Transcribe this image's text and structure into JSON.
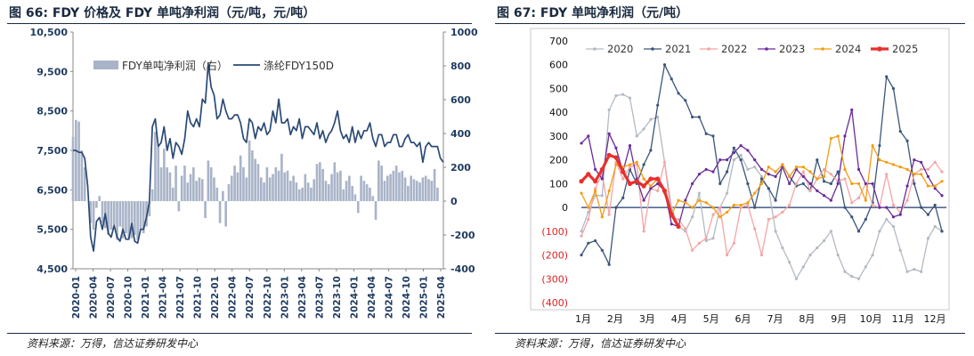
{
  "left": {
    "title": "图 66:  FDY 价格及 FDY 单吨净利润（元/吨，元/吨）",
    "source": "资料来源：万得，信达证券研发中心",
    "chart_data": {
      "type": "bar+line",
      "left_axis": {
        "min": 4500,
        "max": 10500,
        "ticks": [
          4500,
          5500,
          6500,
          7500,
          8500,
          9500,
          10500
        ],
        "tick_labels": [
          "4,500",
          "5,500",
          "6,500",
          "7,500",
          "8,500",
          "9,500",
          "10,500"
        ]
      },
      "right_axis": {
        "min": -400,
        "max": 1000,
        "ticks": [
          -400,
          -200,
          0,
          200,
          400,
          600,
          800,
          1000
        ],
        "tick_labels": [
          "-400",
          "-200",
          "0",
          "200",
          "400",
          "600",
          "800",
          "1000"
        ]
      },
      "x_labels": [
        "2020-01",
        "2020-04",
        "2020-07",
        "2020-10",
        "2021-01",
        "2021-04",
        "2021-07",
        "2021-10",
        "2022-01",
        "2022-04",
        "2022-07",
        "2022-10",
        "2023-01",
        "2023-04",
        "2023-07",
        "2023-10",
        "2024-01",
        "2024-04",
        "2024-07",
        "2024-10",
        "2025-01",
        "2025-04"
      ],
      "x_range_months": [
        0,
        63
      ],
      "legend": [
        {
          "name": "FDY单吨净利润（右）",
          "type": "bar",
          "color": "#a9b4c8"
        },
        {
          "name": "涤纶FDY150D",
          "type": "line",
          "color": "#2b4a75"
        }
      ],
      "profit_series": {
        "name": "FDY单吨净利润（右）",
        "month": [
          0,
          0.5,
          1,
          1.5,
          2,
          2.5,
          3,
          3.5,
          4,
          4.5,
          5,
          5.5,
          6,
          6.5,
          7,
          7.5,
          8,
          8.5,
          9,
          9.5,
          10,
          10.5,
          11,
          11.5,
          12,
          12.5,
          13,
          13.5,
          14,
          14.5,
          15,
          15.5,
          16,
          16.5,
          17,
          17.5,
          18,
          18.5,
          19,
          19.5,
          20,
          20.5,
          21,
          21.5,
          22,
          22.5,
          23,
          23.5,
          24,
          24.5,
          25,
          25.5,
          26,
          26.5,
          27,
          27.5,
          28,
          28.5,
          29,
          29.5,
          30,
          30.5,
          31,
          31.5,
          32,
          32.5,
          33,
          33.5,
          34,
          34.5,
          35,
          35.5,
          36,
          36.5,
          37,
          37.5,
          38,
          38.5,
          39,
          39.5,
          40,
          40.5,
          41,
          41.5,
          42,
          42.5,
          43,
          43.5,
          44,
          44.5,
          45,
          45.5,
          46,
          46.5,
          47,
          47.5,
          48,
          48.5,
          49,
          49.5,
          50,
          50.5,
          51,
          51.5,
          52,
          52.5,
          53,
          53.5,
          54,
          54.5,
          55,
          55.5,
          56,
          56.5,
          57,
          57.5,
          58,
          58.5,
          59,
          59.5,
          60,
          60.5,
          61,
          61.5,
          62
        ],
        "values": [
          380,
          480,
          470,
          300,
          200,
          0,
          -130,
          -170,
          -40,
          30,
          -130,
          -160,
          -200,
          -170,
          -140,
          -230,
          -150,
          -220,
          -190,
          -220,
          -220,
          -200,
          -230,
          -170,
          -190,
          -150,
          -90,
          70,
          410,
          320,
          200,
          310,
          200,
          170,
          80,
          210,
          -60,
          150,
          210,
          110,
          160,
          200,
          120,
          140,
          130,
          -100,
          240,
          200,
          140,
          80,
          -130,
          60,
          -150,
          100,
          150,
          210,
          170,
          270,
          200,
          140,
          360,
          300,
          250,
          220,
          140,
          110,
          200,
          140,
          160,
          200,
          180,
          280,
          170,
          180,
          120,
          150,
          110,
          70,
          80,
          160,
          110,
          80,
          130,
          220,
          230,
          190,
          120,
          100,
          160,
          230,
          170,
          180,
          70,
          120,
          150,
          90,
          40,
          -70,
          150,
          120,
          100,
          80,
          30,
          -110,
          240,
          210,
          120,
          150,
          160,
          180,
          210,
          170,
          180,
          140,
          90,
          150,
          130,
          120,
          110,
          140,
          150,
          130,
          120,
          190,
          80
        ]
      },
      "price_series": {
        "name": "涤纶FDY150D",
        "month": [
          0,
          0.5,
          1,
          1.5,
          2,
          2.5,
          3,
          3.5,
          4,
          4.5,
          5,
          5.5,
          6,
          6.5,
          7,
          7.5,
          8,
          8.5,
          9,
          9.5,
          10,
          10.5,
          11,
          11.5,
          12,
          12.5,
          13,
          13.5,
          14,
          14.5,
          15,
          15.5,
          16,
          16.5,
          17,
          17.5,
          18,
          18.5,
          19,
          19.5,
          20,
          20.5,
          21,
          21.5,
          22,
          22.5,
          23,
          23.5,
          24,
          24.5,
          25,
          25.5,
          26,
          26.5,
          27,
          27.5,
          28,
          28.5,
          29,
          29.5,
          30,
          30.5,
          31,
          31.5,
          32,
          32.5,
          33,
          33.5,
          34,
          34.5,
          35,
          35.5,
          36,
          36.5,
          37,
          37.5,
          38,
          38.5,
          39,
          39.5,
          40,
          40.5,
          41,
          41.5,
          42,
          42.5,
          43,
          43.5,
          44,
          44.5,
          45,
          45.5,
          46,
          46.5,
          47,
          47.5,
          48,
          48.5,
          49,
          49.5,
          50,
          50.5,
          51,
          51.5,
          52,
          52.5,
          53,
          53.5,
          54,
          54.5,
          55,
          55.5,
          56,
          56.5,
          57,
          57.5,
          58,
          58.5,
          59,
          59.5,
          60,
          60.5,
          61,
          61.5,
          62,
          62.5,
          63
        ],
        "values": [
          7500,
          7500,
          7450,
          7450,
          7300,
          6600,
          5300,
          4950,
          5700,
          5800,
          5500,
          5900,
          5400,
          5300,
          5600,
          5300,
          5200,
          5500,
          5250,
          5250,
          5650,
          5200,
          5150,
          5500,
          5500,
          5800,
          6200,
          8100,
          8300,
          7600,
          7700,
          8100,
          7500,
          7800,
          7300,
          7700,
          7600,
          7400,
          7800,
          8500,
          8200,
          8100,
          8300,
          8100,
          8800,
          8700,
          9700,
          9100,
          8900,
          8300,
          8400,
          8800,
          8500,
          8300,
          8300,
          8400,
          8400,
          8200,
          7800,
          7700,
          8300,
          8200,
          7800,
          8100,
          8000,
          8200,
          7900,
          8000,
          8500,
          8200,
          8800,
          8200,
          8200,
          8300,
          7900,
          8100,
          8000,
          8300,
          7800,
          8100,
          8100,
          8000,
          7900,
          8200,
          7800,
          8000,
          7700,
          7900,
          8000,
          8200,
          8500,
          8000,
          7800,
          7900,
          7700,
          8100,
          7700,
          8000,
          7800,
          8000,
          8000,
          8200,
          7800,
          7600,
          7900,
          7900,
          7600,
          7700,
          7700,
          7900,
          7900,
          7600,
          7600,
          7800,
          7900,
          7700,
          7700,
          7600,
          7700,
          7200,
          7600,
          7700,
          7600,
          7600,
          7600,
          7300,
          7200
        ]
      }
    }
  },
  "right": {
    "title": "图 67:  FDY 单吨净利润（元/吨）",
    "source": "资料来源：万得，信达证券研发中心",
    "chart_data": {
      "type": "line",
      "y_axis": {
        "min": -400,
        "max": 700,
        "ticks": [
          -400,
          -300,
          -200,
          -100,
          0,
          100,
          200,
          300,
          400,
          500,
          600,
          700
        ],
        "tick_labels": [
          "(400)",
          "(300)",
          "(200)",
          "(100)",
          "0",
          "100",
          "200",
          "300",
          "400",
          "500",
          "600",
          "700"
        ]
      },
      "x_labels": [
        "1月",
        "2月",
        "3月",
        "4月",
        "5月",
        "6月",
        "7月",
        "8月",
        "9月",
        "10月",
        "11月",
        "12月"
      ],
      "week_range": [
        1,
        53
      ],
      "series": [
        {
          "name": "2020",
          "color": "#b3bac4",
          "values": [
            -100,
            -20,
            50,
            50,
            410,
            470,
            475,
            460,
            300,
            330,
            370,
            380,
            190,
            0,
            -80,
            -100,
            -40,
            60,
            -140,
            -130,
            0,
            60,
            200,
            220,
            160,
            170,
            130,
            80,
            -100,
            -170,
            -230,
            -300,
            -250,
            -200,
            -170,
            -140,
            -100,
            -200,
            -270,
            -290,
            -300,
            -250,
            -200,
            -100,
            -50,
            -80,
            -180,
            -270,
            -260,
            -270,
            -130,
            -80,
            -100
          ]
        },
        {
          "name": "2021",
          "color": "#3a567a",
          "values": [
            -200,
            -150,
            -140,
            -180,
            -240,
            0,
            40,
            160,
            100,
            180,
            240,
            430,
            600,
            540,
            480,
            450,
            380,
            380,
            310,
            300,
            100,
            150,
            250,
            200,
            100,
            0,
            120,
            80,
            30,
            180,
            130,
            90,
            100,
            70,
            200,
            110,
            100,
            150,
            0,
            -40,
            -100,
            -50,
            20,
            260,
            550,
            500,
            320,
            280,
            100,
            0,
            -30,
            10,
            -100
          ]
        },
        {
          "name": "2022",
          "color": "#f4a5a5",
          "values": [
            -120,
            -50,
            80,
            140,
            -30,
            190,
            120,
            170,
            180,
            -100,
            80,
            70,
            190,
            -40,
            -50,
            -90,
            -180,
            -150,
            -130,
            -30,
            0,
            -200,
            -150,
            0,
            10,
            -90,
            -200,
            -50,
            -40,
            -20,
            10,
            100,
            150,
            70,
            120,
            160,
            140,
            110,
            120,
            20,
            40,
            100,
            10,
            0,
            140,
            10,
            -20,
            30,
            140,
            160,
            160,
            190,
            150
          ]
        },
        {
          "name": "2023",
          "color": "#6a2c9a",
          "values": [
            270,
            300,
            160,
            120,
            310,
            250,
            150,
            260,
            120,
            30,
            80,
            100,
            70,
            -70,
            -80,
            30,
            100,
            140,
            160,
            150,
            200,
            200,
            230,
            260,
            240,
            200,
            160,
            140,
            130,
            170,
            100,
            160,
            130,
            100,
            70,
            50,
            30,
            100,
            300,
            410,
            160,
            100,
            100,
            0,
            0,
            -40,
            -30,
            90,
            200,
            190,
            130,
            80,
            50
          ]
        },
        {
          "name": "2024",
          "color": "#f39c12",
          "values": [
            60,
            0,
            70,
            -40,
            70,
            180,
            170,
            180,
            190,
            120,
            90,
            120,
            60,
            -30,
            30,
            20,
            0,
            30,
            20,
            0,
            -40,
            -20,
            10,
            10,
            20,
            60,
            100,
            170,
            150,
            180,
            130,
            170,
            170,
            150,
            120,
            130,
            290,
            300,
            160,
            100,
            100,
            30,
            260,
            200,
            190,
            180,
            170,
            160,
            140,
            140,
            90,
            90,
            110
          ]
        },
        {
          "name": "2025",
          "color": "#e8302d",
          "values": [
            110,
            140,
            110,
            160,
            220,
            210,
            150,
            100,
            110,
            90,
            120,
            120,
            70,
            -30,
            -80
          ]
        }
      ]
    }
  }
}
